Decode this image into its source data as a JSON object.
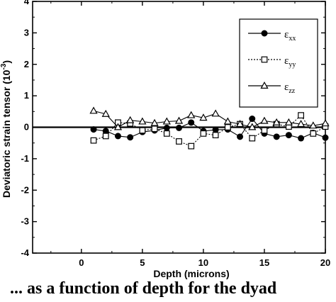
{
  "chart_data": {
    "type": "line",
    "xlabel": "Depth (microns)",
    "ylabel": "Deviatoric strain tensor (10",
    "ylabel_sup": "-3",
    "ylabel_close": ")",
    "xlim": [
      -4,
      20
    ],
    "ylim": [
      -4,
      4
    ],
    "x_ticks": [
      0,
      5,
      10,
      15,
      20
    ],
    "x_tick_labels": [
      "0",
      "5",
      "10",
      "15",
      "20"
    ],
    "y_ticks": [
      -4,
      -3,
      -2,
      -1,
      0,
      1,
      2,
      3,
      4
    ],
    "y_tick_labels": [
      "-4",
      "-3",
      "-2",
      "-1",
      "0",
      "1",
      "2",
      "3",
      "4"
    ],
    "grid": false,
    "legend_position": "top-right",
    "x": [
      1,
      2,
      3,
      4,
      5,
      6,
      7,
      8,
      9,
      10,
      11,
      12,
      13,
      14,
      15,
      16,
      17,
      18,
      19,
      20
    ],
    "series": [
      {
        "name": "ε",
        "subscript": "xx",
        "marker": "filled-circle",
        "line": "solid",
        "values": [
          -0.07,
          -0.12,
          -0.28,
          -0.32,
          -0.15,
          -0.1,
          -0.02,
          -0.02,
          0.15,
          -0.12,
          -0.08,
          -0.07,
          -0.3,
          0.27,
          -0.2,
          -0.3,
          -0.25,
          -0.35,
          -0.18,
          -0.33
        ]
      },
      {
        "name": "ε",
        "subscript": "yy",
        "marker": "open-square",
        "line": "dotted",
        "values": [
          -0.42,
          -0.28,
          0.15,
          0.12,
          -0.1,
          -0.05,
          -0.2,
          -0.45,
          -0.6,
          -0.2,
          -0.25,
          0.0,
          0.1,
          -0.35,
          -0.1,
          0.1,
          0.02,
          0.38,
          -0.2,
          0.02
        ]
      },
      {
        "name": "ε",
        "subscript": "zz",
        "marker": "open-triangle",
        "line": "solid",
        "values": [
          0.52,
          0.42,
          0.0,
          0.22,
          0.18,
          0.13,
          0.18,
          0.2,
          0.38,
          0.3,
          0.43,
          0.18,
          0.1,
          0.0,
          0.2,
          0.15,
          0.15,
          0.1,
          0.05,
          0.12
        ]
      }
    ]
  },
  "caption": "... as a function of depth for the dyad"
}
